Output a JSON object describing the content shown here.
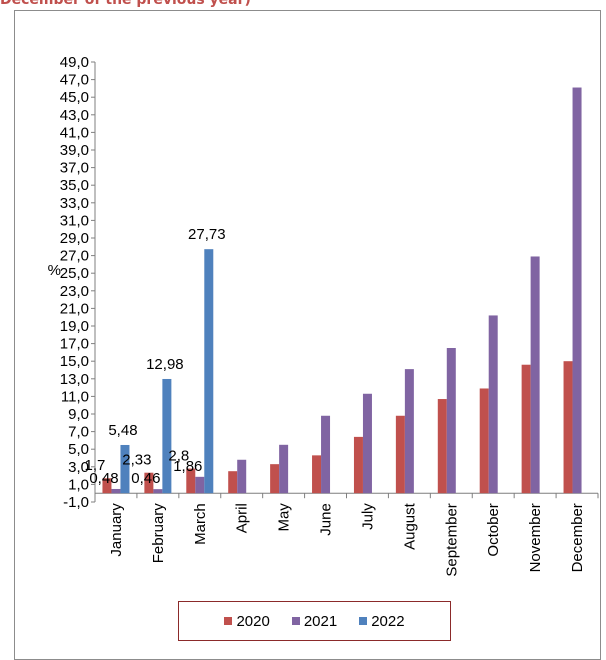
{
  "page": {
    "title": "December of the previous year)"
  },
  "chart_data": {
    "type": "bar",
    "title": "",
    "xlabel": "",
    "ylabel": "%",
    "ylim": [
      -1.0,
      49.0
    ],
    "ytick_step": 2,
    "ytick_labels": [
      "-1,0",
      "1,0",
      "3,0",
      "5,0",
      "7,0",
      "9,0",
      "11,0",
      "13,0",
      "15,0",
      "17,0",
      "19,0",
      "21,0",
      "23,0",
      "25,0",
      "27,0",
      "29,0",
      "31,0",
      "33,0",
      "35,0",
      "37,0",
      "39,0",
      "41,0",
      "43,0",
      "45,0",
      "47,0",
      "49,0"
    ],
    "categories": [
      "January",
      "February",
      "March",
      "April",
      "May",
      "June",
      "July",
      "August",
      "September",
      "October",
      "November",
      "December"
    ],
    "series": [
      {
        "name": "2020",
        "color": "#c0504d",
        "values": [
          1.7,
          2.33,
          2.8,
          2.5,
          3.3,
          4.3,
          6.4,
          8.8,
          10.7,
          11.9,
          14.6,
          15.0
        ]
      },
      {
        "name": "2021",
        "color": "#8064a2",
        "values": [
          0.48,
          0.46,
          1.86,
          3.8,
          5.5,
          8.8,
          11.3,
          14.1,
          16.5,
          20.2,
          26.9,
          46.1
        ]
      },
      {
        "name": "2022",
        "color": "#4f81bd",
        "values": [
          5.48,
          12.98,
          27.73,
          null,
          null,
          null,
          null,
          null,
          null,
          null,
          null,
          null
        ]
      }
    ],
    "data_labels": [
      {
        "series": "2020",
        "category": "January",
        "text": "1,7"
      },
      {
        "series": "2021",
        "category": "January",
        "text": "0,48"
      },
      {
        "series": "2022",
        "category": "January",
        "text": "5,48"
      },
      {
        "series": "2020",
        "category": "February",
        "text": "2,33"
      },
      {
        "series": "2021",
        "category": "February",
        "text": "0,46"
      },
      {
        "series": "2022",
        "category": "February",
        "text": "12,98"
      },
      {
        "series": "2020",
        "category": "March",
        "text": "2,8"
      },
      {
        "series": "2021",
        "category": "March",
        "text": "1,86"
      },
      {
        "series": "2022",
        "category": "March",
        "text": "27,73"
      }
    ],
    "grid": false,
    "legend_position": "bottom"
  }
}
